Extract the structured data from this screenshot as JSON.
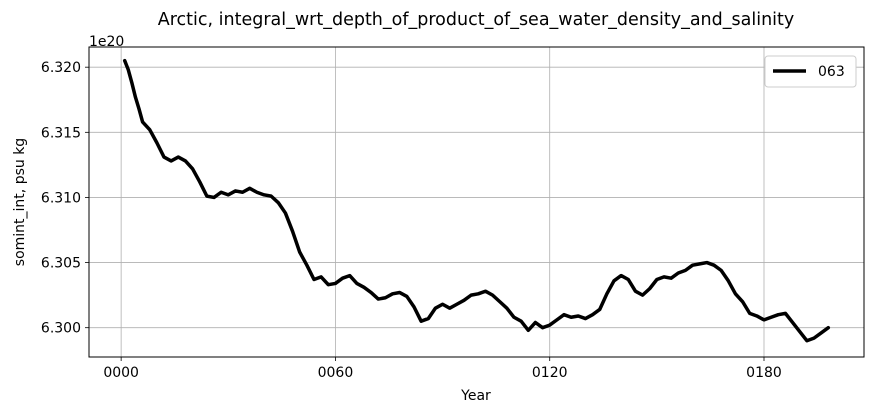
{
  "chart_data": {
    "type": "line",
    "title": "Arctic, integral_wrt_depth_of_product_of_sea_water_density_and_salinity",
    "xlabel": "Year",
    "ylabel": "somint_int, psu kg",
    "y_offset_label": "1e20",
    "xlim": [
      -9,
      208
    ],
    "ylim": [
      6.29775,
      6.32155
    ],
    "x_ticks": [
      0,
      60,
      120,
      180
    ],
    "x_tick_labels": [
      "0000",
      "0060",
      "0120",
      "0180"
    ],
    "y_ticks": [
      6.3,
      6.305,
      6.31,
      6.315,
      6.32
    ],
    "y_tick_labels": [
      "6.300",
      "6.305",
      "6.310",
      "6.315",
      "6.320"
    ],
    "grid": true,
    "legend_position": "top-right",
    "series": [
      {
        "name": "063",
        "color": "#000000",
        "x": [
          1,
          2,
          3,
          4,
          5,
          6,
          8,
          10,
          12,
          14,
          16,
          18,
          20,
          22,
          24,
          26,
          28,
          30,
          32,
          34,
          36,
          38,
          40,
          42,
          44,
          46,
          48,
          50,
          52,
          54,
          56,
          58,
          60,
          62,
          64,
          66,
          68,
          70,
          72,
          74,
          76,
          78,
          80,
          82,
          84,
          86,
          88,
          90,
          92,
          94,
          96,
          98,
          100,
          102,
          104,
          106,
          108,
          110,
          112,
          114,
          116,
          118,
          120,
          122,
          124,
          126,
          128,
          130,
          132,
          134,
          136,
          138,
          140,
          142,
          144,
          146,
          148,
          150,
          152,
          154,
          156,
          158,
          160,
          162,
          164,
          166,
          168,
          170,
          172,
          174,
          176,
          178,
          180,
          182,
          184,
          186,
          188,
          190,
          192,
          194,
          196,
          198
        ],
        "values": [
          6.3205,
          6.3198,
          6.3188,
          6.3177,
          6.3168,
          6.3158,
          6.3152,
          6.3142,
          6.3131,
          6.3128,
          6.3131,
          6.3128,
          6.3122,
          6.3112,
          6.3101,
          6.31,
          6.3104,
          6.3102,
          6.3105,
          6.3104,
          6.3107,
          6.3104,
          6.3102,
          6.3101,
          6.3096,
          6.3088,
          6.3074,
          6.3058,
          6.3048,
          6.3037,
          6.3039,
          6.3033,
          6.3034,
          6.3038,
          6.304,
          6.3034,
          6.3031,
          6.3027,
          6.3022,
          6.3023,
          6.3026,
          6.3027,
          6.3024,
          6.3016,
          6.3005,
          6.3007,
          6.3015,
          6.3018,
          6.3015,
          6.3018,
          6.3021,
          6.3025,
          6.3026,
          6.3028,
          6.3025,
          6.302,
          6.3015,
          6.3008,
          6.3005,
          6.2998,
          6.3004,
          6.3,
          6.3002,
          6.3006,
          6.301,
          6.3008,
          6.3009,
          6.3007,
          6.301,
          6.3014,
          6.3026,
          6.3036,
          6.304,
          6.3037,
          6.3028,
          6.3025,
          6.303,
          6.3037,
          6.3039,
          6.3038,
          6.3042,
          6.3044,
          6.3048,
          6.3049,
          6.305,
          6.3048,
          6.3044,
          6.3036,
          6.3026,
          6.302,
          6.3011,
          6.3009,
          6.3006,
          6.3008,
          6.301,
          6.3011,
          6.3004,
          6.2997,
          6.299,
          6.2992,
          6.2996,
          6.3
        ]
      }
    ]
  }
}
